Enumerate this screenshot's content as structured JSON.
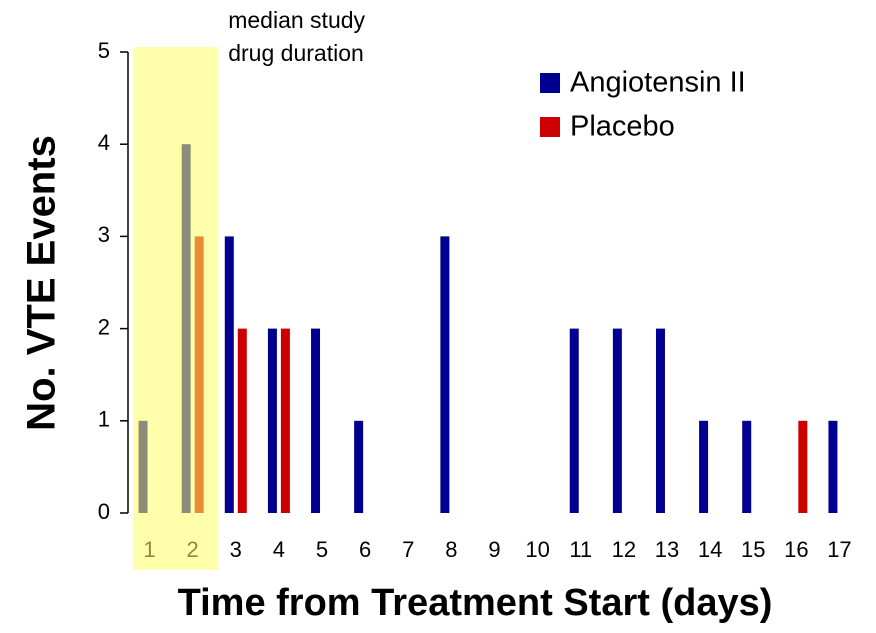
{
  "chart_data": {
    "type": "bar",
    "x_label": "Time from Treatment Start (days)",
    "y_label": "No. VTE Events",
    "annotation": [
      "median study",
      "drug duration"
    ],
    "highlight": [
      "1",
      "2"
    ],
    "categories": [
      "1",
      "2",
      "3",
      "4",
      "5",
      "6",
      "7",
      "8",
      "9",
      "10",
      "11",
      "12",
      "13",
      "14",
      "15",
      "16",
      "17"
    ],
    "series": [
      {
        "name": "Angiotensin II",
        "color": "#000090",
        "values": [
          1,
          4,
          3,
          2,
          2,
          1,
          0,
          3,
          0,
          0,
          2,
          2,
          2,
          1,
          1,
          0,
          1
        ]
      },
      {
        "name": "Placebo",
        "color": "#cc0000",
        "values": [
          0,
          3,
          2,
          2,
          0,
          0,
          0,
          0,
          0,
          0,
          0,
          0,
          0,
          0,
          0,
          1,
          0
        ]
      }
    ],
    "ylim": [
      0,
      5
    ],
    "yticks": [
      0,
      1,
      2,
      3,
      4,
      5
    ],
    "grid": false,
    "legend": "upper right"
  }
}
